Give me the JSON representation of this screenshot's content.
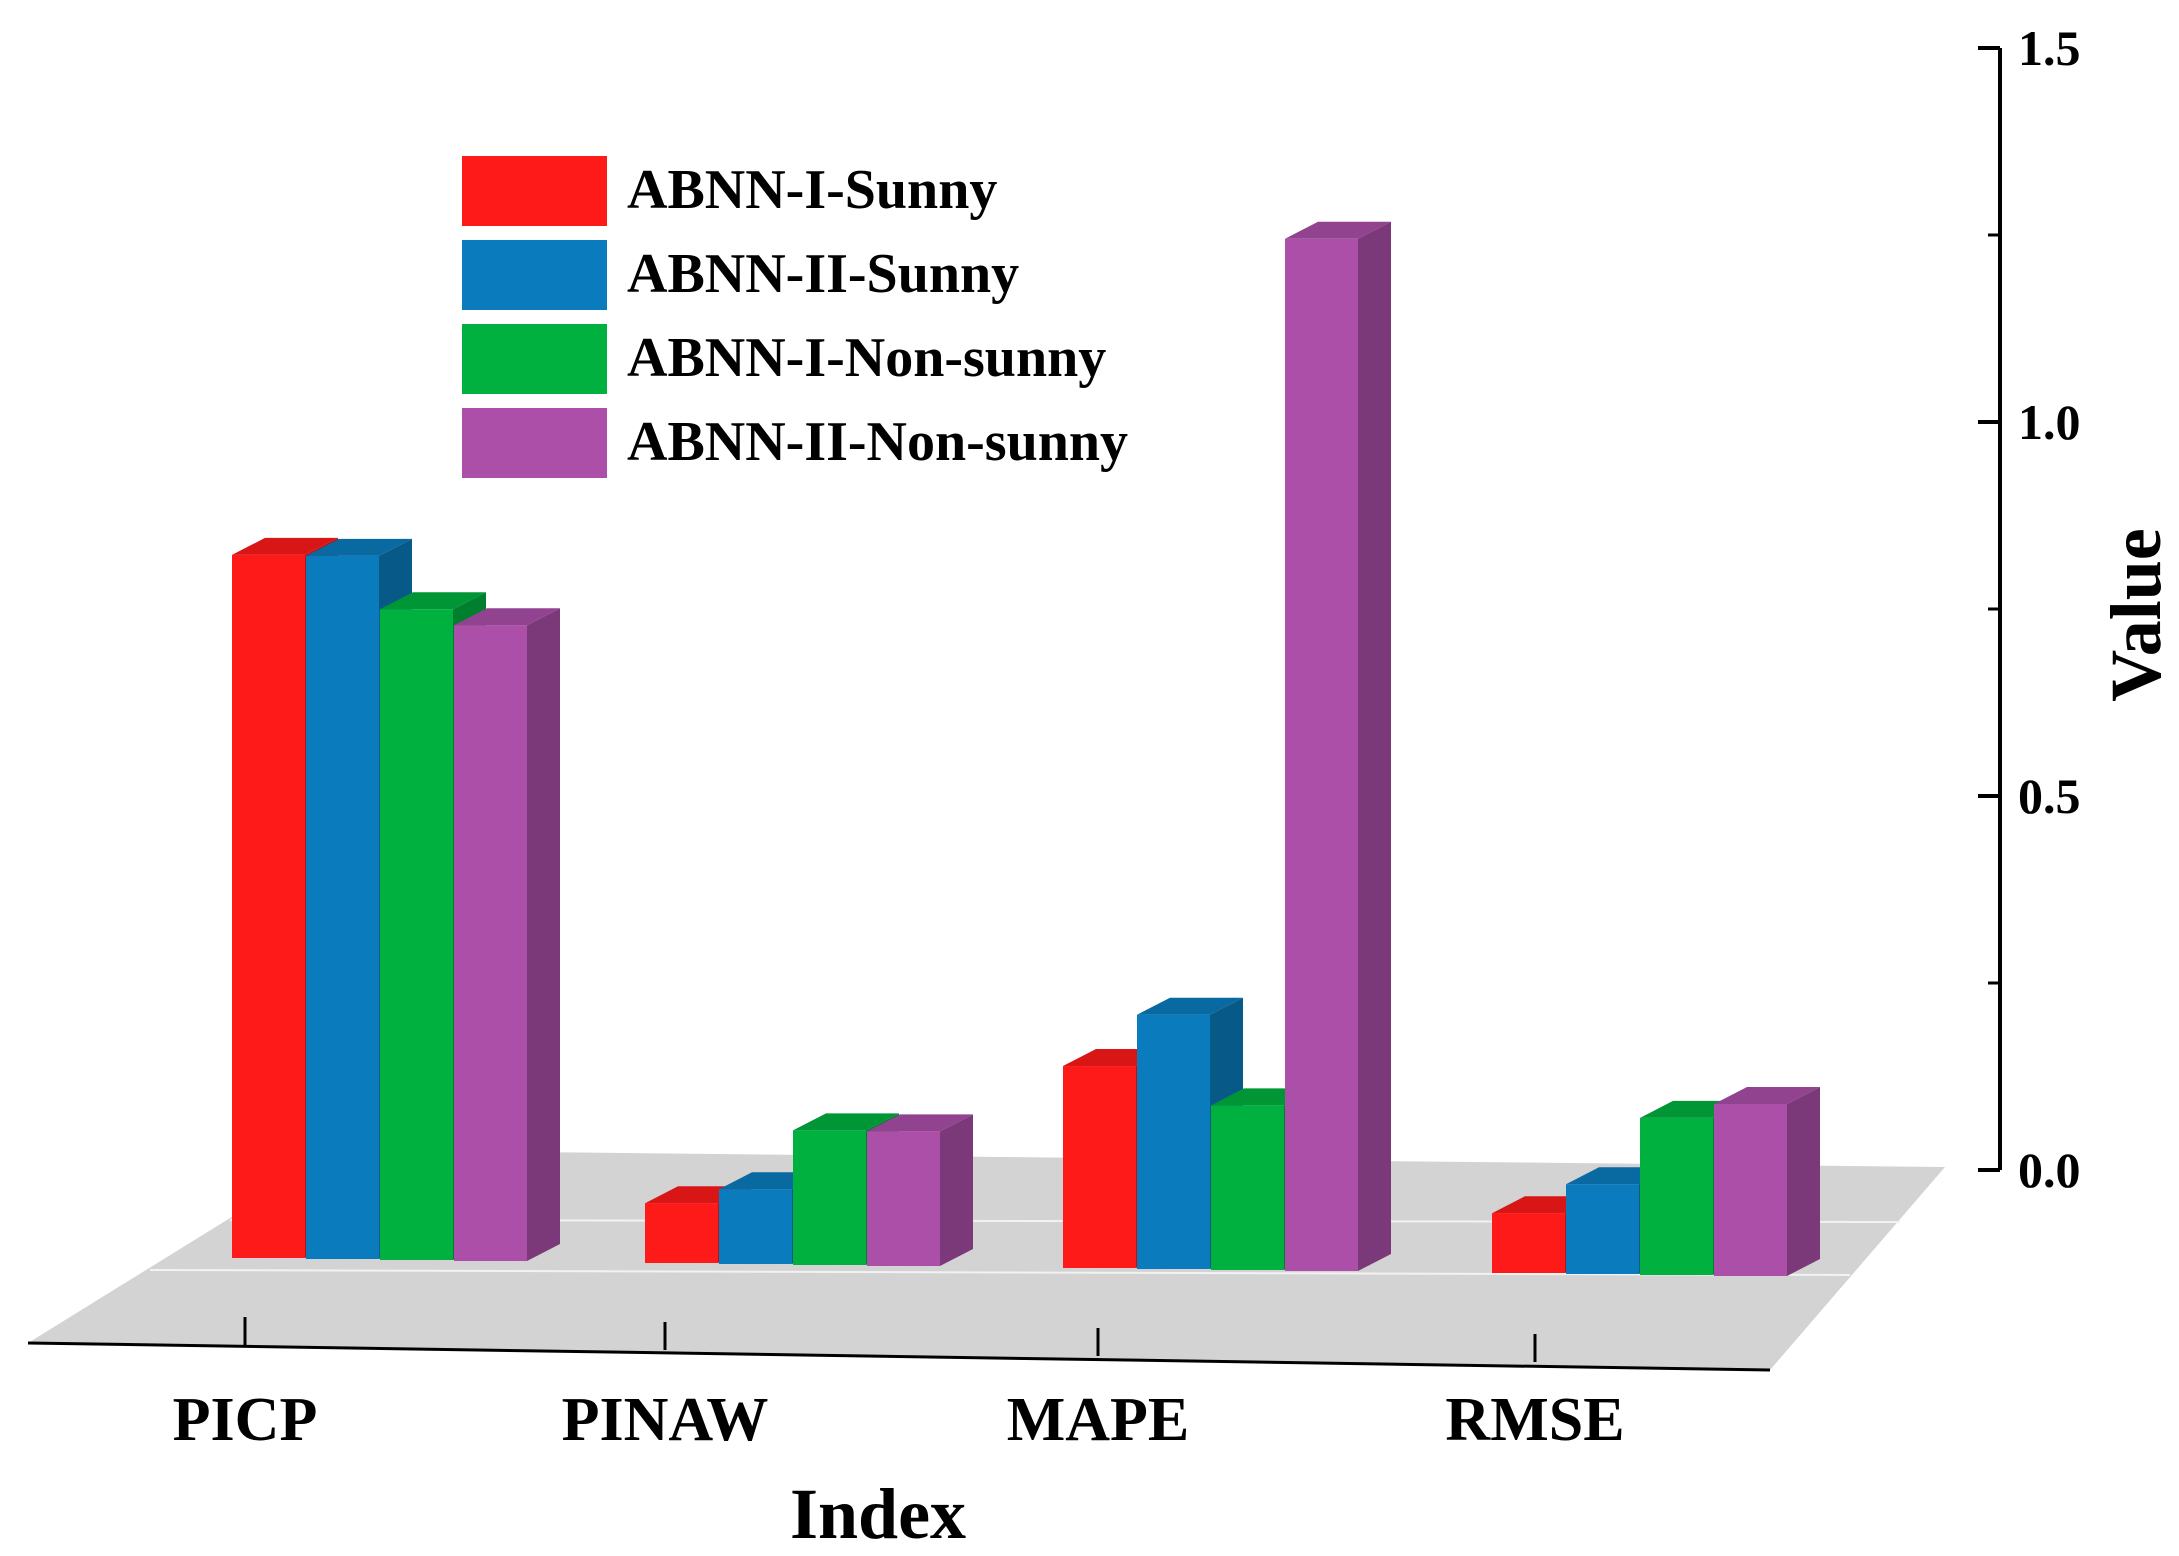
{
  "chart_data": {
    "type": "bar",
    "subtype": "3d-grouped-bar",
    "title": "",
    "xlabel": "Index",
    "ylabel": "Value",
    "categories": [
      "PICP",
      "PINAW",
      "MAPE",
      "RMSE"
    ],
    "ylim": [
      0,
      1.5
    ],
    "yticks": [
      "0.0",
      "0.5",
      "1.0",
      "1.5"
    ],
    "legend_position": "top-left",
    "grid": false,
    "floor_color": "#d3d3d3",
    "series": [
      {
        "name": "ABNN-I-Sunny",
        "color": "#ff1a1a",
        "values": [
          0.94,
          0.08,
          0.27,
          0.08
        ]
      },
      {
        "name": "ABNN-II-Sunny",
        "color": "#0a7bbd",
        "values": [
          0.94,
          0.1,
          0.34,
          0.12
        ]
      },
      {
        "name": "ABNN-I-Non-sunny",
        "color": "#00b140",
        "values": [
          0.87,
          0.18,
          0.22,
          0.21
        ]
      },
      {
        "name": "ABNN-II-Non-sunny",
        "color": "#ab4fa8",
        "values": [
          0.85,
          0.18,
          1.38,
          0.23
        ]
      }
    ]
  }
}
